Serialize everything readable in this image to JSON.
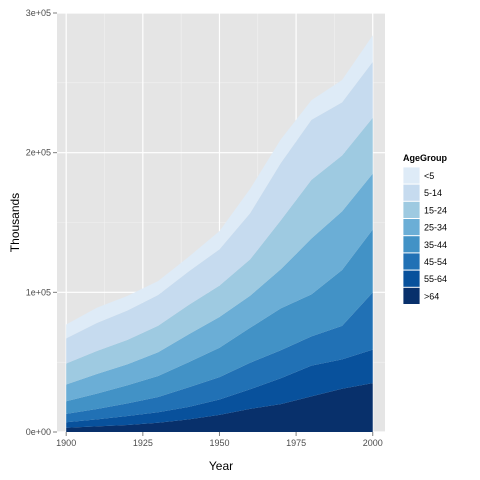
{
  "chart_data": {
    "type": "area",
    "stacked": true,
    "xlabel": "Year",
    "ylabel": "Thousands",
    "xlim": [
      1897,
      2004
    ],
    "ylim": [
      0,
      300000
    ],
    "x_ticks": [
      1900,
      1925,
      1950,
      1975,
      2000
    ],
    "x_tick_labels": [
      "1900",
      "1925",
      "1950",
      "1975",
      "2000"
    ],
    "y_ticks": [
      0,
      100000,
      200000,
      300000
    ],
    "y_tick_labels": [
      "0e+00",
      "1e+05",
      "2e+05",
      "3e+05"
    ],
    "grid": true,
    "legend": {
      "title": "AgeGroup",
      "placement": "right",
      "entries": [
        "<5",
        "5-14",
        "15-24",
        "25-34",
        "35-44",
        "45-54",
        "55-64",
        ">64"
      ]
    },
    "x": [
      1900,
      1910,
      1920,
      1930,
      1940,
      1950,
      1960,
      1970,
      1980,
      1990,
      2000
    ],
    "series": [
      {
        "name": ">64",
        "color": "#08306b",
        "values": [
          3000,
          4000,
          5000,
          6600,
          9000,
          12300,
          16600,
          20000,
          25500,
          31000,
          35000
        ]
      },
      {
        "name": "55-64",
        "color": "#08519c",
        "values": [
          4000,
          5000,
          6500,
          7500,
          9000,
          11000,
          14000,
          18500,
          22000,
          21000,
          24000
        ]
      },
      {
        "name": "45-54",
        "color": "#2171b5",
        "values": [
          6000,
          7500,
          9000,
          11000,
          14000,
          16000,
          19000,
          20000,
          21000,
          24000,
          41000
        ]
      },
      {
        "name": "35-44",
        "color": "#4292c6",
        "values": [
          9000,
          11000,
          13000,
          15000,
          18000,
          21000,
          25000,
          30000,
          30000,
          40000,
          45000
        ]
      },
      {
        "name": "25-34",
        "color": "#6baed6",
        "values": [
          12000,
          14000,
          15000,
          17000,
          20000,
          22000,
          23000,
          28000,
          40000,
          42000,
          40000
        ]
      },
      {
        "name": "15-24",
        "color": "#9ecae1",
        "values": [
          15000,
          16500,
          17500,
          19000,
          21000,
          22500,
          26000,
          35000,
          42000,
          40000,
          40000
        ]
      },
      {
        "name": "5-14",
        "color": "#c6dbef",
        "values": [
          18000,
          20000,
          21000,
          22000,
          24000,
          26000,
          33000,
          41000,
          43000,
          38000,
          40000
        ]
      },
      {
        "name": "<5",
        "color": "#deebf7",
        "values": [
          10000,
          11000,
          10500,
          10000,
          10500,
          13000,
          17500,
          17000,
          14000,
          16000,
          19000
        ]
      }
    ]
  }
}
